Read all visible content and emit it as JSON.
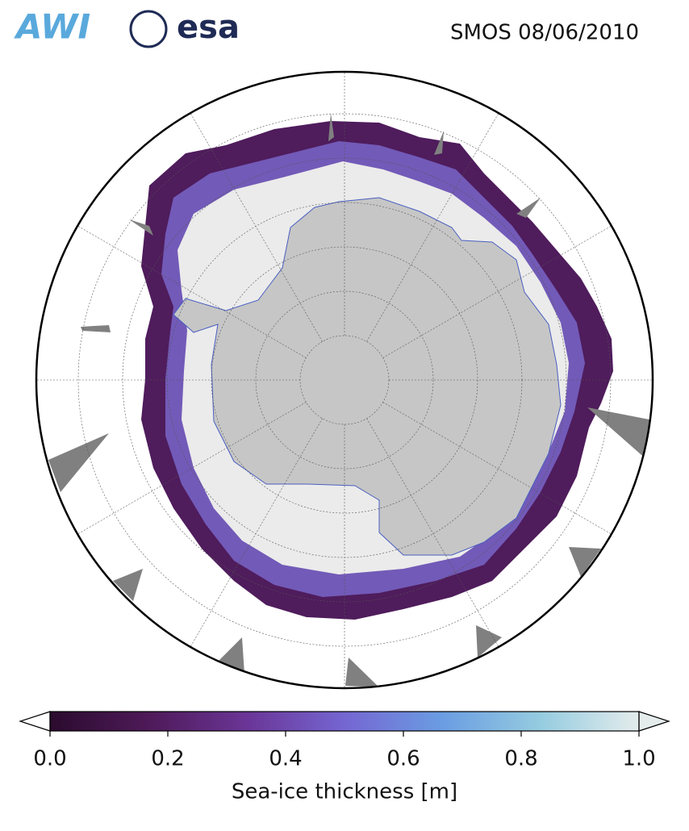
{
  "header": {
    "logos": [
      "AWI",
      "esa"
    ],
    "title": "SMOS 08/06/2010"
  },
  "colorbar": {
    "label": "Sea-ice thickness [m]",
    "lim": [
      0,
      1
    ],
    "ticks": [
      {
        "value": 0,
        "label": "0.0"
      },
      {
        "value": 0.2,
        "label": "0.2"
      },
      {
        "value": 0.4,
        "label": "0.4"
      },
      {
        "value": 0.6,
        "label": "0.6"
      },
      {
        "value": 0.8,
        "label": "0.8"
      },
      {
        "value": 1,
        "label": "1.0"
      }
    ],
    "colors": [
      "#2b0b2e",
      "#4e1a58",
      "#6a3596",
      "#7566d2",
      "#6a9de2",
      "#96cce0",
      "#e4ecec"
    ]
  }
}
